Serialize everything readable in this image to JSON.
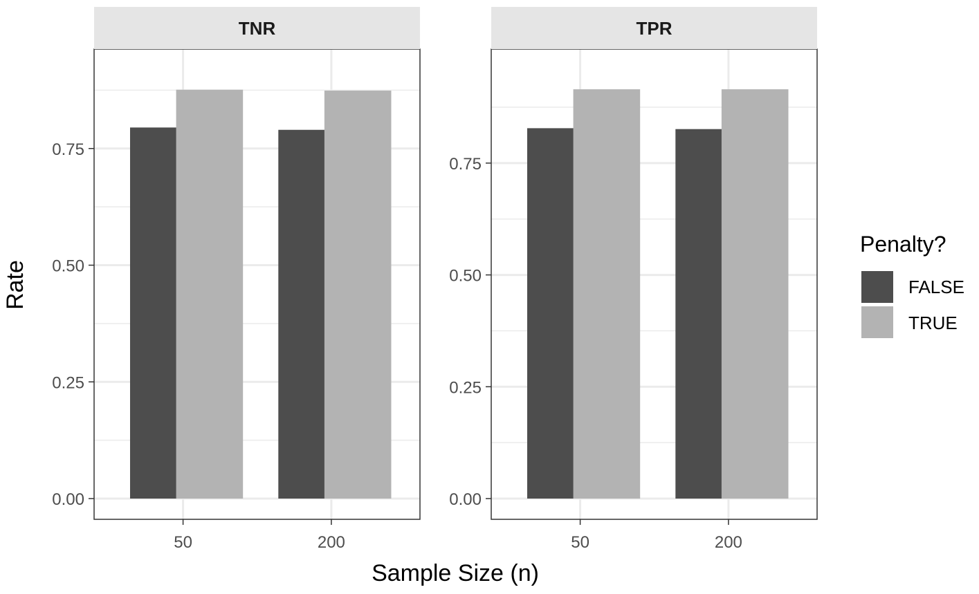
{
  "chart_data": {
    "type": "bar",
    "facets": [
      {
        "title": "TNR",
        "categories": [
          "50",
          "200"
        ],
        "series": [
          {
            "name": "FALSE",
            "values": [
              0.795,
              0.79
            ]
          },
          {
            "name": "TRUE",
            "values": [
              0.876,
              0.874
            ]
          }
        ],
        "ylim": [
          0,
          0.92
        ],
        "yticks": [
          0.0,
          0.25,
          0.5,
          0.75
        ],
        "ytick_labels": [
          "0.00",
          "0.25",
          "0.50",
          "0.75"
        ]
      },
      {
        "title": "TPR",
        "categories": [
          "50",
          "200"
        ],
        "series": [
          {
            "name": "FALSE",
            "values": [
              0.828,
              0.826
            ]
          },
          {
            "name": "TRUE",
            "values": [
              0.915,
              0.915
            ]
          }
        ],
        "ylim": [
          0,
          0.96
        ],
        "yticks": [
          0.0,
          0.25,
          0.5,
          0.75
        ],
        "ytick_labels": [
          "0.00",
          "0.25",
          "0.50",
          "0.75"
        ]
      }
    ],
    "xlabel": "Sample Size (n)",
    "ylabel": "Rate",
    "legend": {
      "title": "Penalty?",
      "placement": "right",
      "entries": [
        {
          "label": "FALSE",
          "color": "#4d4d4d"
        },
        {
          "label": "TRUE",
          "color": "#b3b3b3"
        }
      ]
    },
    "grid": true,
    "colors": {
      "strip_bg": "#e5e5e5",
      "grid": "#ebebeb",
      "panel_border": "#333333"
    }
  }
}
